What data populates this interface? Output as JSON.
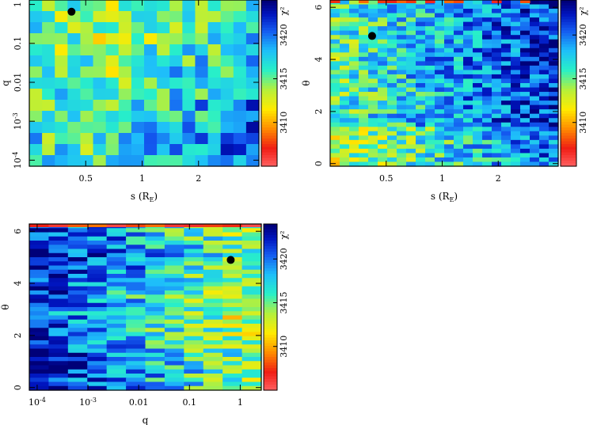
{
  "chart_data": [
    {
      "type": "heatmap",
      "panel": "top-left",
      "xlabel": "s (R_E)",
      "ylabel": "q",
      "x_scale": "log",
      "y_scale": "log",
      "xlim": [
        0.25,
        4.2
      ],
      "ylim": [
        7e-05,
        1.3
      ],
      "x_ticks": [
        {
          "v": 0.5,
          "label": "0.5"
        },
        {
          "v": 1,
          "label": "1"
        },
        {
          "v": 2,
          "label": "2"
        }
      ],
      "y_ticks": [
        {
          "v": 1,
          "label": "1"
        },
        {
          "v": 0.1,
          "label": "0.1"
        },
        {
          "v": 0.01,
          "label": "0.01"
        },
        {
          "v": 0.001,
          "label": "10^-3"
        },
        {
          "v": 0.0001,
          "label": "10^-4"
        }
      ],
      "grid_cols": 18,
      "grid_rows": 15,
      "best_fit": {
        "s": 0.42,
        "q": 0.65
      },
      "colorbar": {
        "label": "χ²",
        "ticks": [
          3410,
          3415,
          3420
        ],
        "range": [
          3405,
          3424
        ]
      }
    },
    {
      "type": "heatmap",
      "panel": "top-right",
      "xlabel": "s (R_E)",
      "ylabel": "θ",
      "x_scale": "log",
      "y_scale": "linear",
      "xlim": [
        0.25,
        4.2
      ],
      "ylim": [
        -0.1,
        6.28
      ],
      "x_ticks": [
        {
          "v": 0.5,
          "label": "0.5"
        },
        {
          "v": 1,
          "label": "1"
        },
        {
          "v": 2,
          "label": "2"
        }
      ],
      "y_ticks": [
        {
          "v": 0,
          "label": "0"
        },
        {
          "v": 2,
          "label": "2"
        },
        {
          "v": 4,
          "label": "4"
        },
        {
          "v": 6,
          "label": "6"
        }
      ],
      "grid_cols": 24,
      "grid_rows": 38,
      "best_fit": {
        "s": 0.42,
        "theta": 4.9
      },
      "colorbar": {
        "label": "χ²",
        "ticks": [
          3410,
          3415,
          3420
        ],
        "range": [
          3405,
          3424
        ]
      }
    },
    {
      "type": "heatmap",
      "panel": "bottom-left",
      "xlabel": "q",
      "ylabel": "θ",
      "x_scale": "log",
      "y_scale": "linear",
      "xlim": [
        7e-05,
        2.6
      ],
      "ylim": [
        -0.1,
        6.28
      ],
      "x_ticks": [
        {
          "v": 0.0001,
          "label": "10^-4"
        },
        {
          "v": 0.001,
          "label": "10^-3"
        },
        {
          "v": 0.01,
          "label": "0.01"
        },
        {
          "v": 0.1,
          "label": "0.1"
        },
        {
          "v": 1,
          "label": "1"
        }
      ],
      "y_ticks": [
        {
          "v": 0,
          "label": "0"
        },
        {
          "v": 2,
          "label": "2"
        },
        {
          "v": 4,
          "label": "4"
        },
        {
          "v": 6,
          "label": "6"
        }
      ],
      "grid_cols": 12,
      "grid_rows": 40,
      "best_fit": {
        "q": 0.65,
        "theta": 4.9
      },
      "colorbar": {
        "label": "χ²",
        "ticks": [
          3410,
          3415,
          3420
        ],
        "range": [
          3405,
          3424
        ]
      }
    }
  ]
}
